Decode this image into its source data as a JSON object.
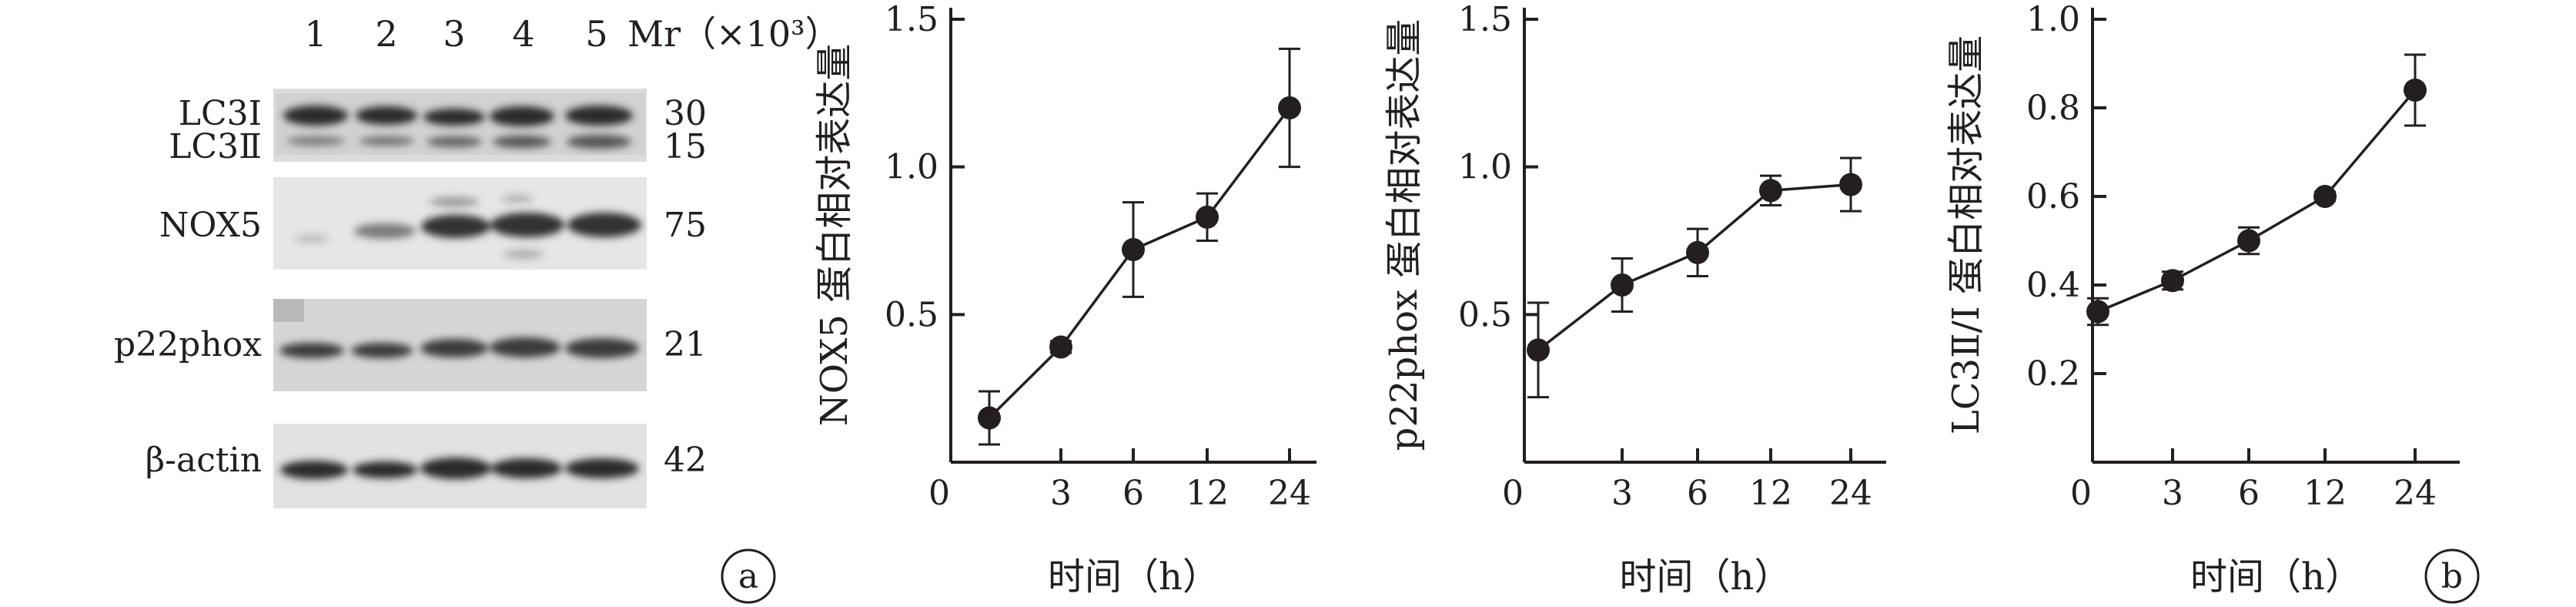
{
  "panel_a": {
    "label": "a",
    "lane_numbers": [
      "1",
      "2",
      "3",
      "4",
      "5"
    ],
    "mr_header": "Mr（×10³）",
    "bands": [
      {
        "name": "LC3Ⅰ",
        "mr": "30"
      },
      {
        "name": "LC3Ⅱ",
        "mr": "15"
      },
      {
        "name": "NOX5",
        "mr": "75"
      },
      {
        "name": "p22phox",
        "mr": "21"
      },
      {
        "name": "β-actin",
        "mr": "42"
      }
    ]
  },
  "panel_b": {
    "label": "b"
  },
  "chart_data": [
    {
      "type": "line",
      "categories": [
        "0",
        "3",
        "6",
        "12",
        "24"
      ],
      "values": [
        0.15,
        0.39,
        0.72,
        0.83,
        1.2
      ],
      "errors": [
        0.09,
        0.02,
        0.16,
        0.08,
        0.2
      ],
      "ylabel": "NOX5 蛋白相对表达量",
      "xlabel": "时间（h）",
      "yticks": [
        "0.5",
        "1.0",
        "1.5"
      ],
      "ylim": [
        0,
        1.5
      ],
      "color": "#231f20"
    },
    {
      "type": "line",
      "categories": [
        "0",
        "3",
        "6",
        "12",
        "24"
      ],
      "values": [
        0.38,
        0.6,
        0.71,
        0.92,
        0.94
      ],
      "errors": [
        0.16,
        0.09,
        0.08,
        0.05,
        0.09
      ],
      "ylabel": "p22phox 蛋白相对表达量",
      "xlabel": "时间（h）",
      "yticks": [
        "0.5",
        "1.0",
        "1.5"
      ],
      "ylim": [
        0,
        1.5
      ],
      "color": "#231f20"
    },
    {
      "type": "line",
      "categories": [
        "0",
        "3",
        "6",
        "12",
        "24"
      ],
      "values": [
        0.34,
        0.41,
        0.5,
        0.6,
        0.84
      ],
      "errors": [
        0.03,
        0.02,
        0.03,
        0.01,
        0.08
      ],
      "ylabel": "LC3Ⅱ/Ⅰ 蛋白相对表达量",
      "xlabel": "时间（h）",
      "yticks": [
        "0.2",
        "0.4",
        "0.6",
        "0.8",
        "1.0"
      ],
      "ylim": [
        0,
        1.0
      ],
      "color": "#231f20"
    }
  ]
}
